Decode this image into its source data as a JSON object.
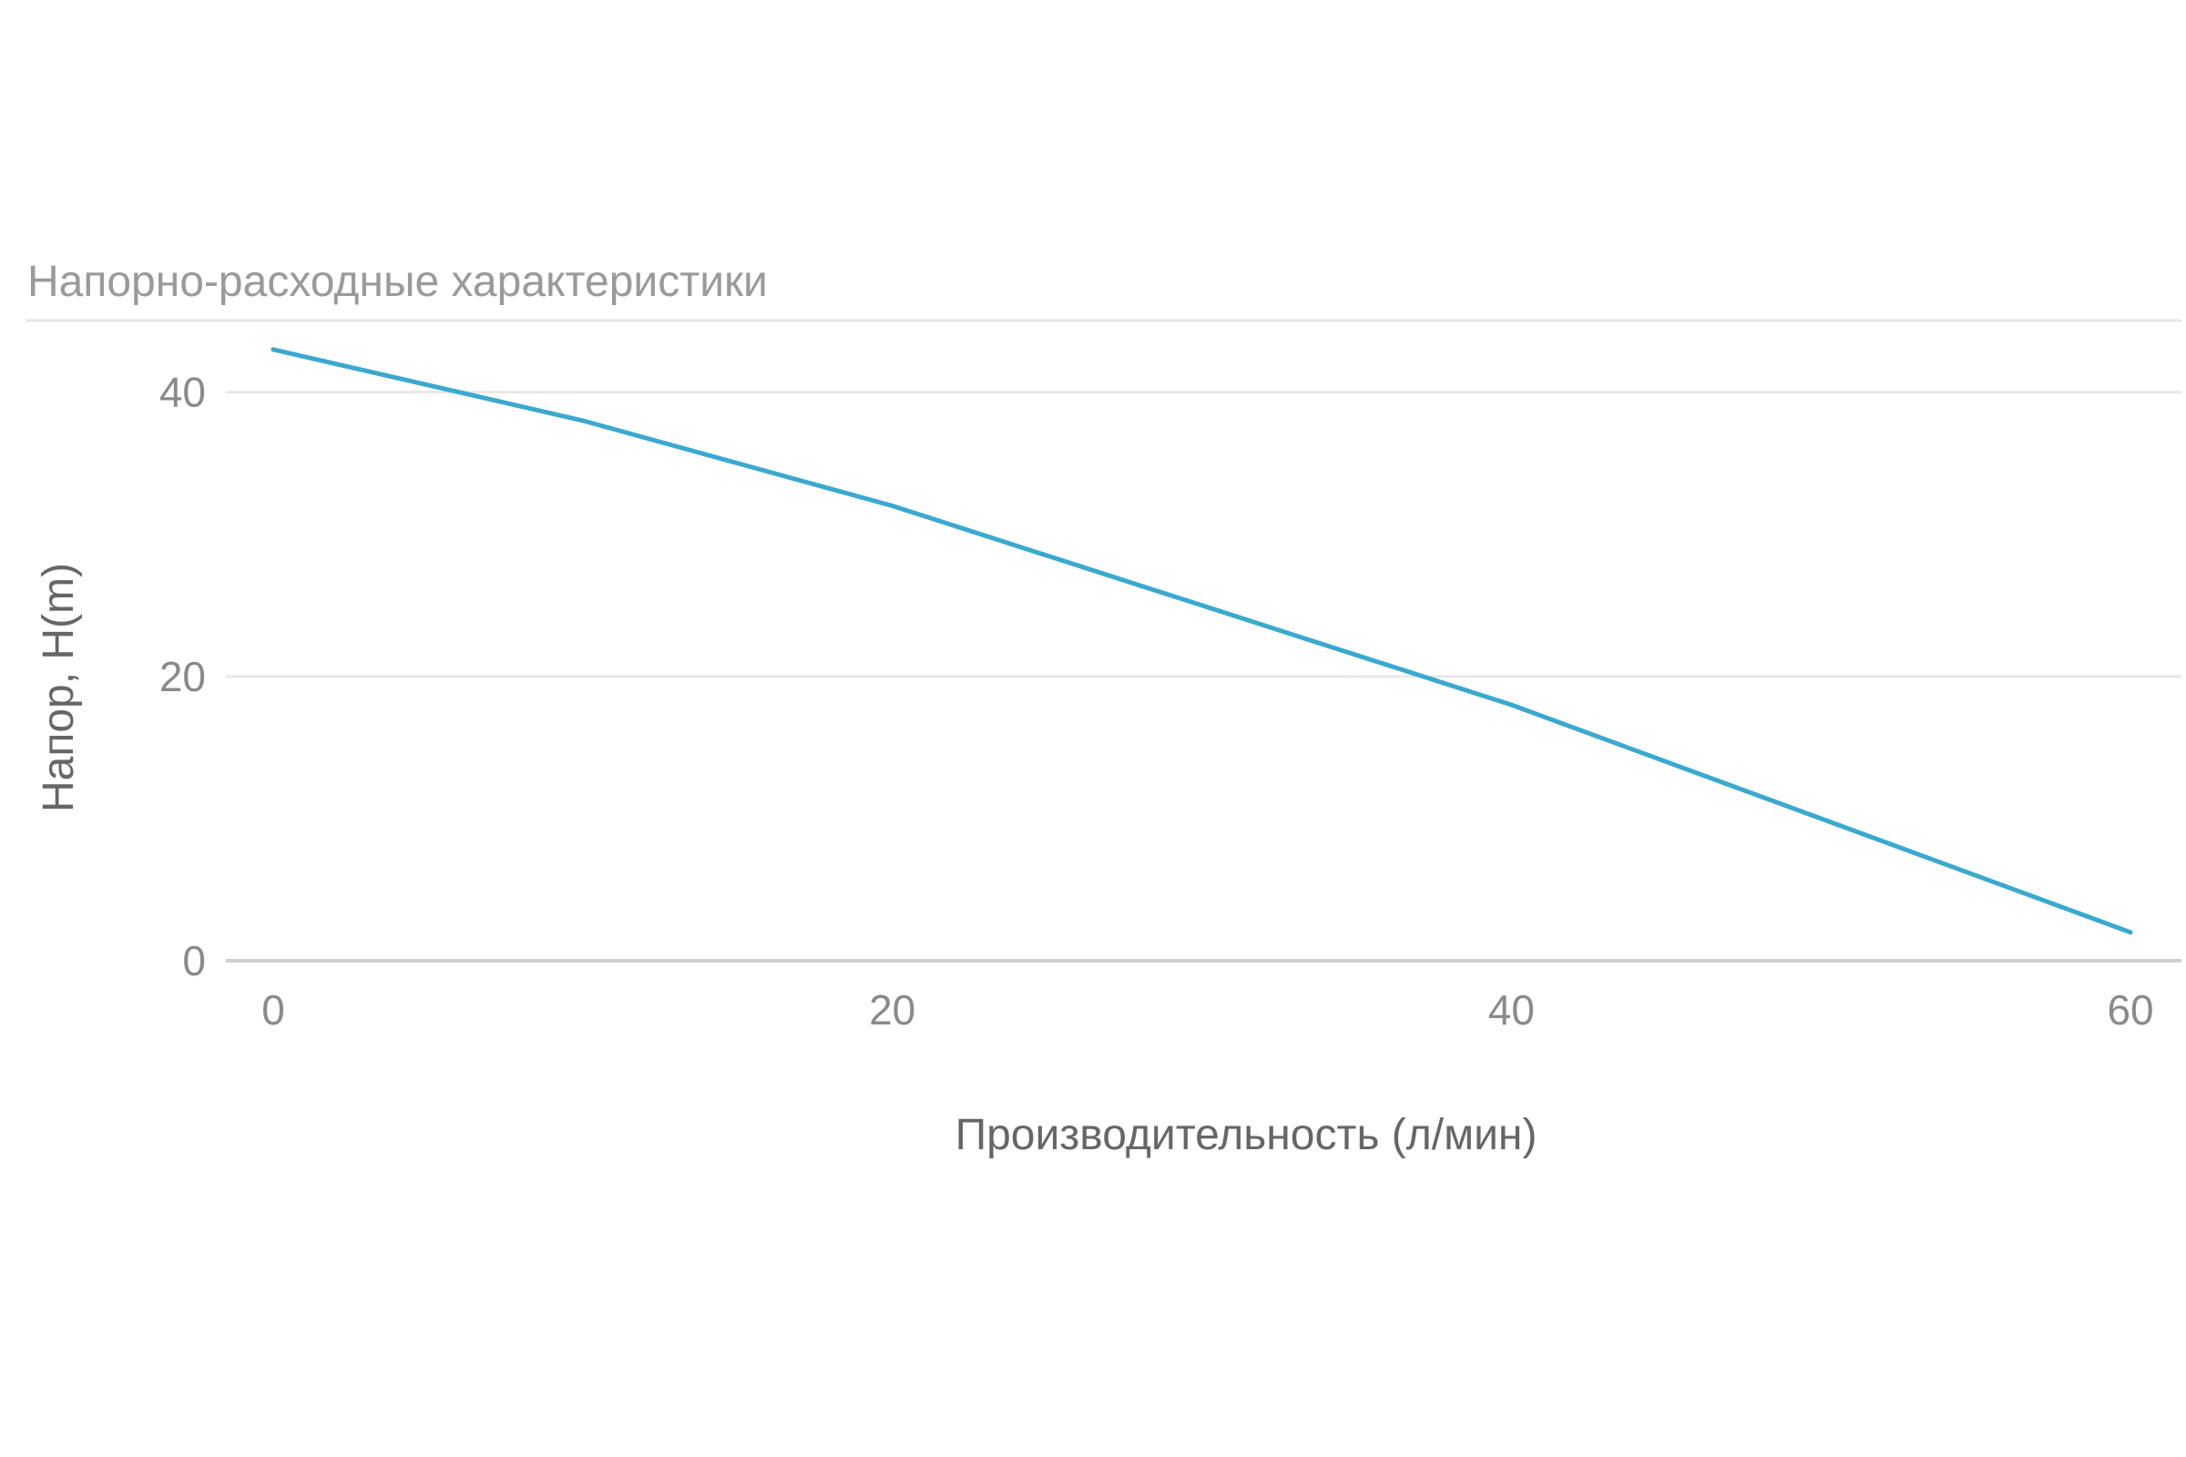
{
  "chart_data": {
    "type": "line",
    "title": "Напорно-расходные характеристики",
    "xlabel": "Производительность (л/мин)",
    "ylabel": "Напор, H(m)",
    "xlim": [
      0,
      61.5
    ],
    "ylim": [
      0,
      46
    ],
    "x_ticks": [
      0,
      20,
      40,
      60
    ],
    "y_ticks": [
      0,
      20,
      40
    ],
    "grid": true,
    "legend": "none",
    "series": [
      {
        "color": "#3aa9cf",
        "x": [
          0,
          10,
          20,
          30,
          40,
          50,
          60
        ],
        "y": [
          43,
          38,
          32,
          25,
          18,
          10,
          2
        ]
      }
    ]
  }
}
